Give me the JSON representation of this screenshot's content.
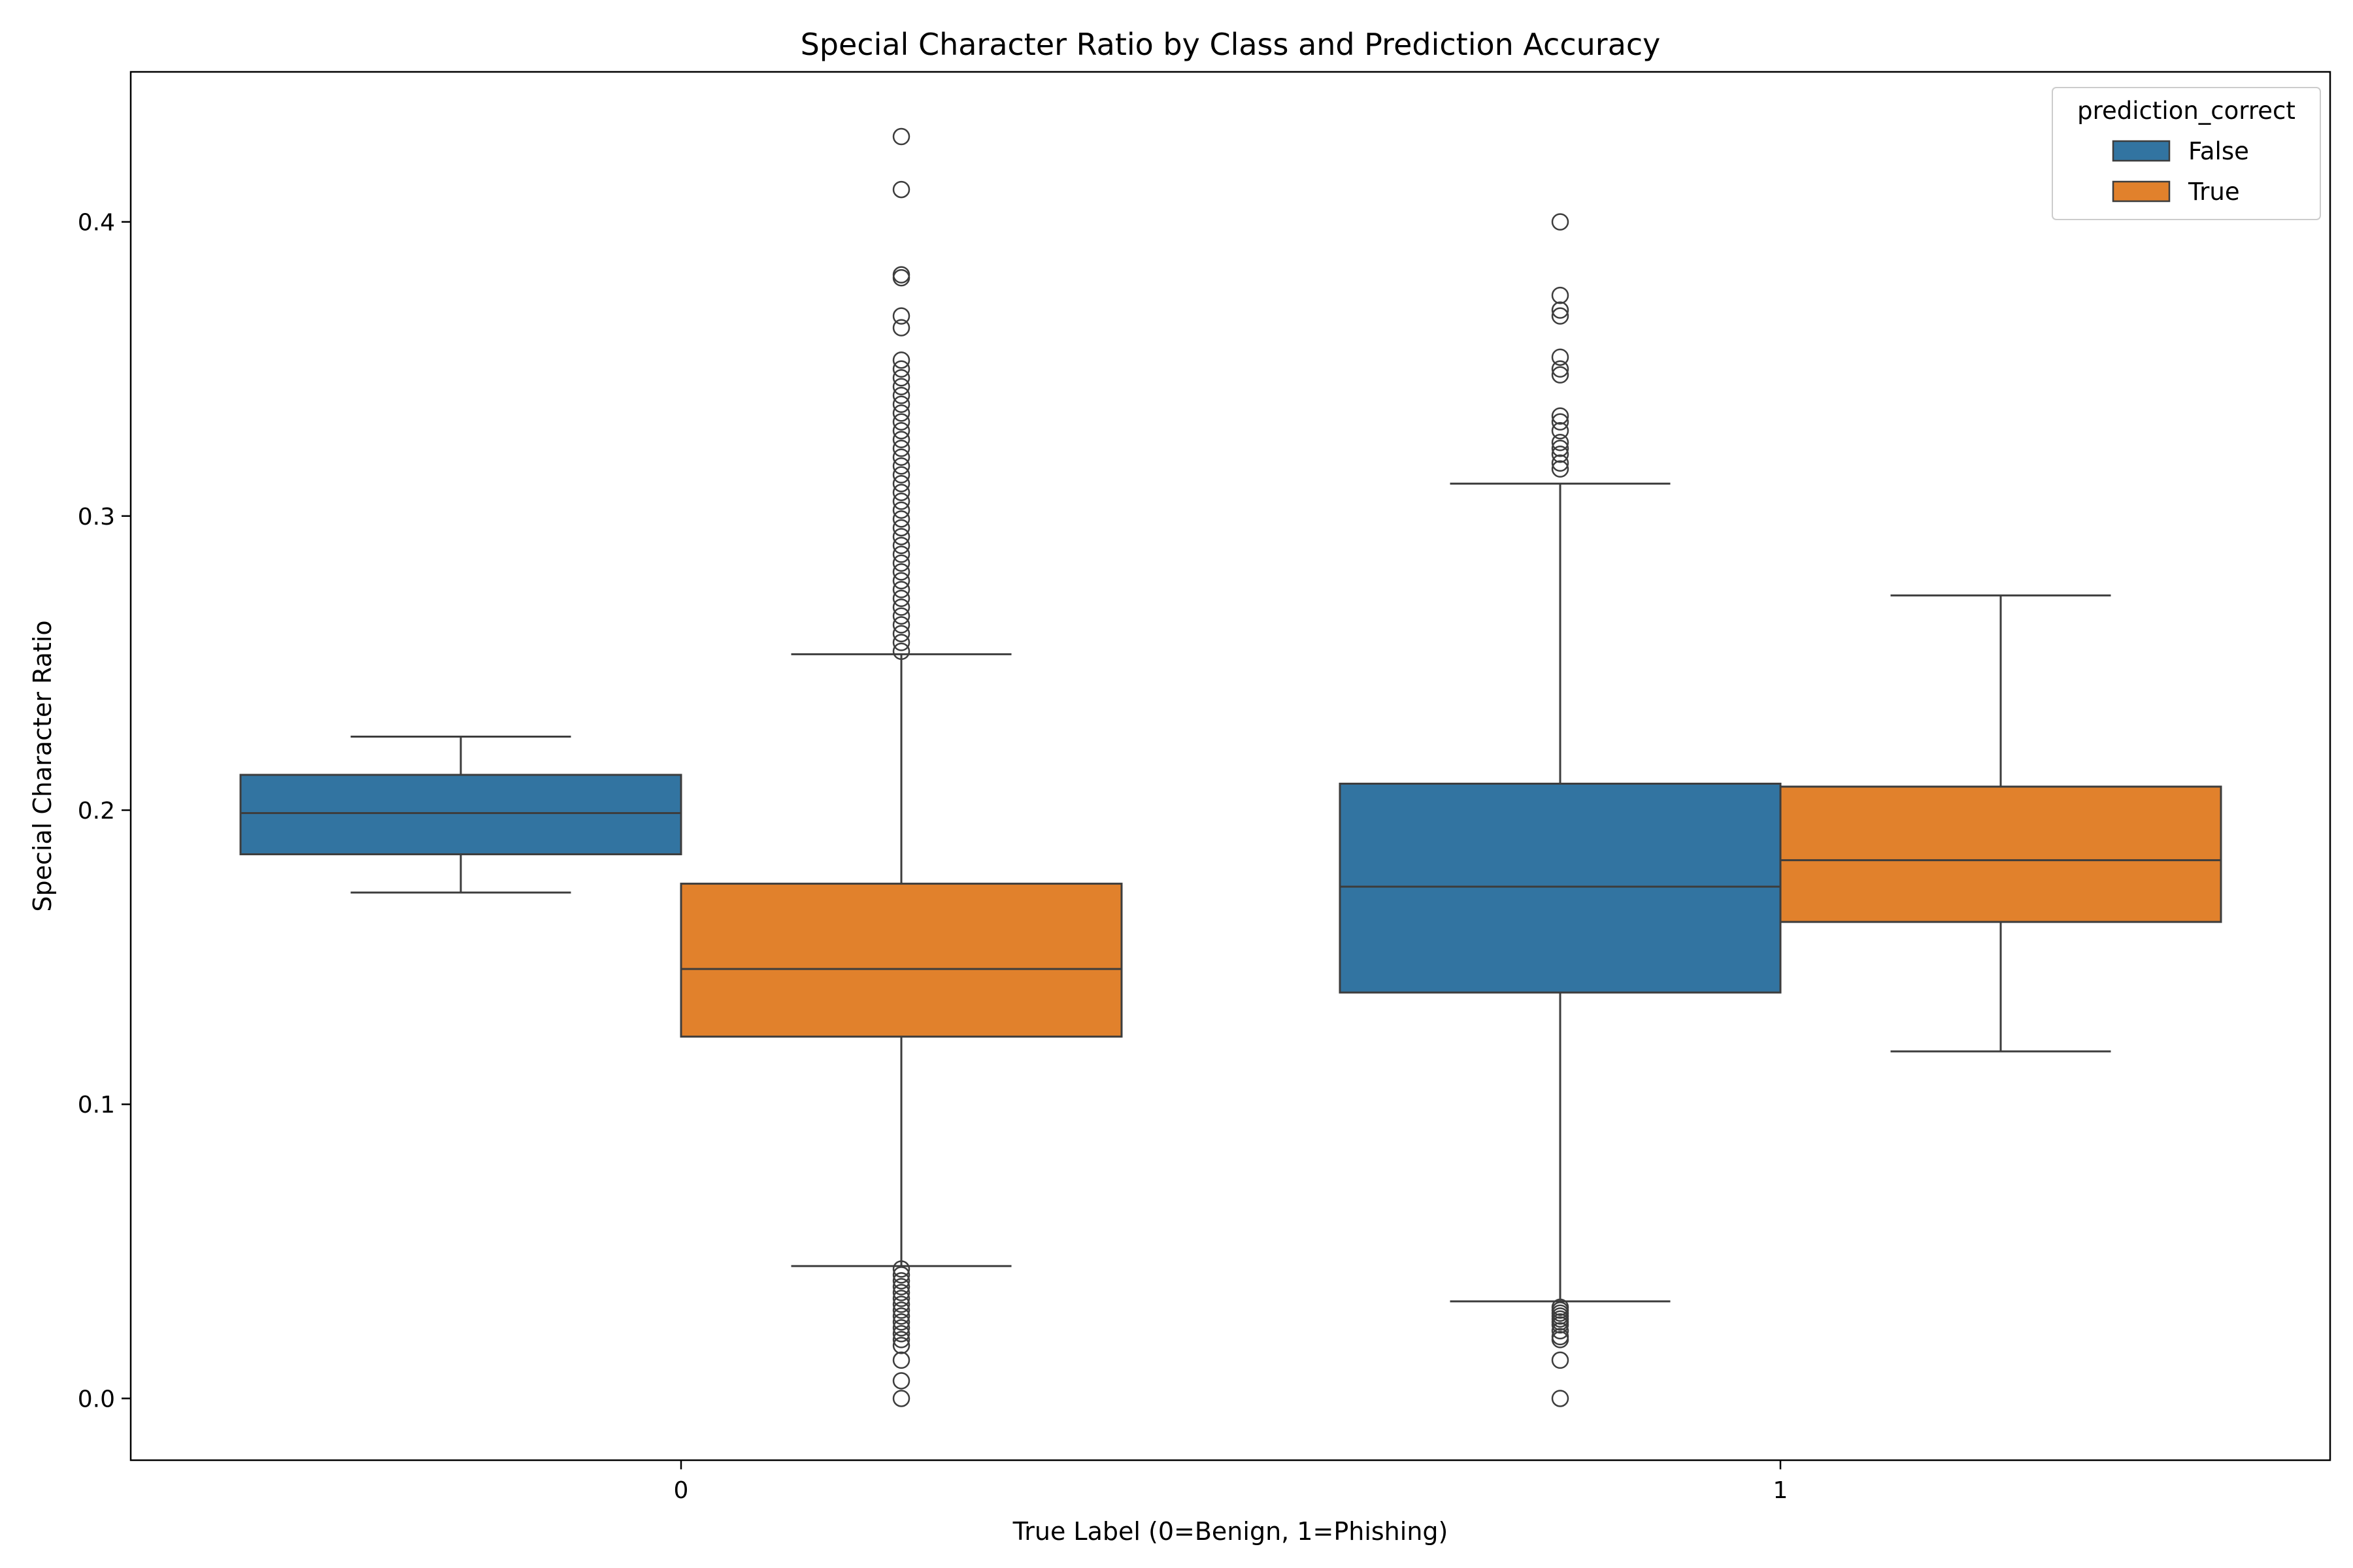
{
  "chart_data": {
    "type": "box",
    "title": "Special Character Ratio by Class and Prediction Accuracy",
    "xlabel": "True Label (0=Benign, 1=Phishing)",
    "ylabel": "Special Character Ratio",
    "categories": [
      "0",
      "1"
    ],
    "ylim": [
      -0.021,
      0.451
    ],
    "yticks": [
      0.0,
      0.1,
      0.2,
      0.3,
      0.4
    ],
    "ytick_labels": [
      "0.0",
      "0.1",
      "0.2",
      "0.3",
      "0.4"
    ],
    "grid": false,
    "legend": {
      "title": "prediction_correct",
      "placement": "top-right"
    },
    "series": [
      {
        "name": "False",
        "color": "#3274a1",
        "boxes": [
          {
            "category": "0",
            "whisker_low": 0.172,
            "q1": 0.185,
            "median": 0.199,
            "q3": 0.212,
            "whisker_high": 0.225,
            "outliers": []
          },
          {
            "category": "1",
            "whisker_low": 0.033,
            "q1": 0.138,
            "median": 0.174,
            "q3": 0.209,
            "whisker_high": 0.311,
            "outliers": [
              0.4,
              0.375,
              0.37,
              0.368,
              0.354,
              0.35,
              0.348,
              0.334,
              0.332,
              0.329,
              0.325,
              0.323,
              0.321,
              0.318,
              0.316,
              0.031,
              0.03,
              0.029,
              0.028,
              0.027,
              0.026,
              0.025,
              0.023,
              0.021,
              0.02,
              0.013,
              0.0
            ]
          }
        ]
      },
      {
        "name": "True",
        "color": "#e1812c",
        "boxes": [
          {
            "category": "0",
            "whisker_low": 0.045,
            "q1": 0.123,
            "median": 0.146,
            "q3": 0.175,
            "whisker_high": 0.253,
            "outliers": [
              0.429,
              0.411,
              0.382,
              0.381,
              0.368,
              0.364,
              0.353,
              0.35,
              0.347,
              0.344,
              0.341,
              0.338,
              0.335,
              0.332,
              0.329,
              0.326,
              0.323,
              0.32,
              0.317,
              0.314,
              0.311,
              0.308,
              0.305,
              0.302,
              0.299,
              0.296,
              0.293,
              0.29,
              0.287,
              0.284,
              0.281,
              0.278,
              0.275,
              0.272,
              0.269,
              0.266,
              0.263,
              0.26,
              0.257,
              0.254,
              0.044,
              0.042,
              0.04,
              0.038,
              0.036,
              0.034,
              0.032,
              0.03,
              0.028,
              0.026,
              0.024,
              0.022,
              0.02,
              0.018,
              0.013,
              0.006,
              0.0
            ]
          },
          {
            "category": "1",
            "whisker_low": 0.118,
            "q1": 0.162,
            "median": 0.183,
            "q3": 0.208,
            "whisker_high": 0.273,
            "outliers": []
          }
        ]
      }
    ]
  }
}
